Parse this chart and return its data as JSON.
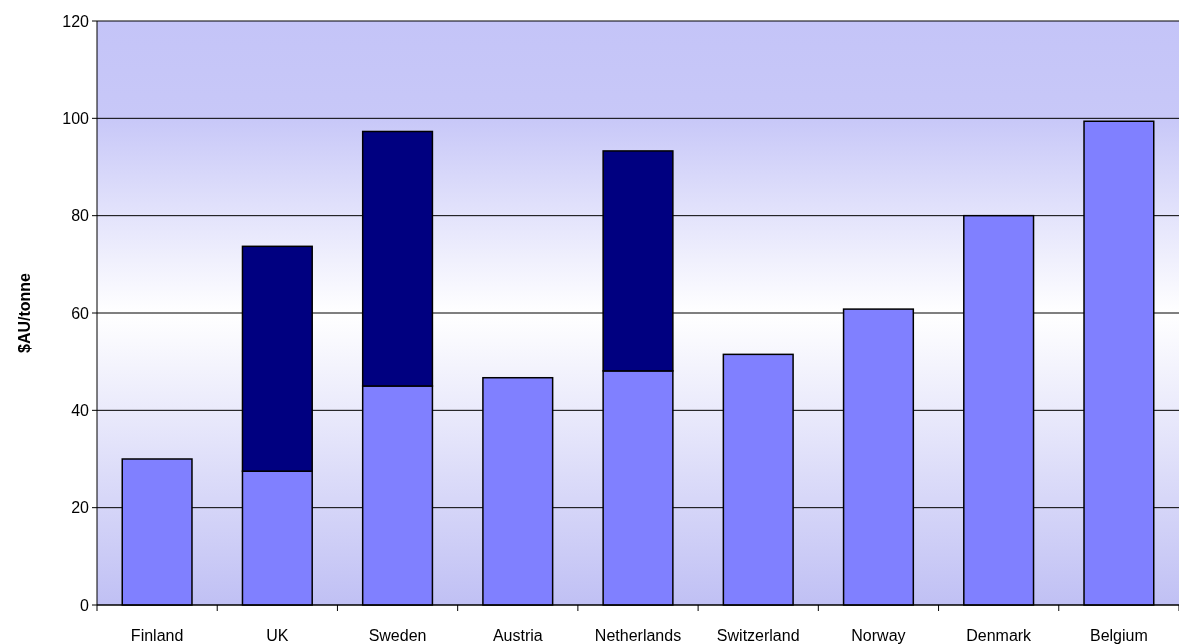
{
  "chart_data": {
    "type": "bar",
    "stacked": true,
    "ylabel": "$AU/tonne",
    "categories": [
      "Finland",
      "UK",
      "Sweden",
      "Austria",
      "Netherlands",
      "Switzerland",
      "Norway",
      "Denmark",
      "Belgium"
    ],
    "series": [
      {
        "color": "#8080ff",
        "values": [
          30,
          27.5,
          45,
          46.7,
          48.1,
          51.5,
          60.8,
          80,
          99.4
        ]
      },
      {
        "color": "#000080",
        "values": [
          null,
          46.2,
          52.3,
          null,
          45.2,
          null,
          null,
          null,
          null
        ]
      }
    ],
    "ylim": [
      0,
      120
    ],
    "yticks": [
      0,
      20,
      40,
      60,
      80,
      100,
      120
    ],
    "grid": "y"
  }
}
